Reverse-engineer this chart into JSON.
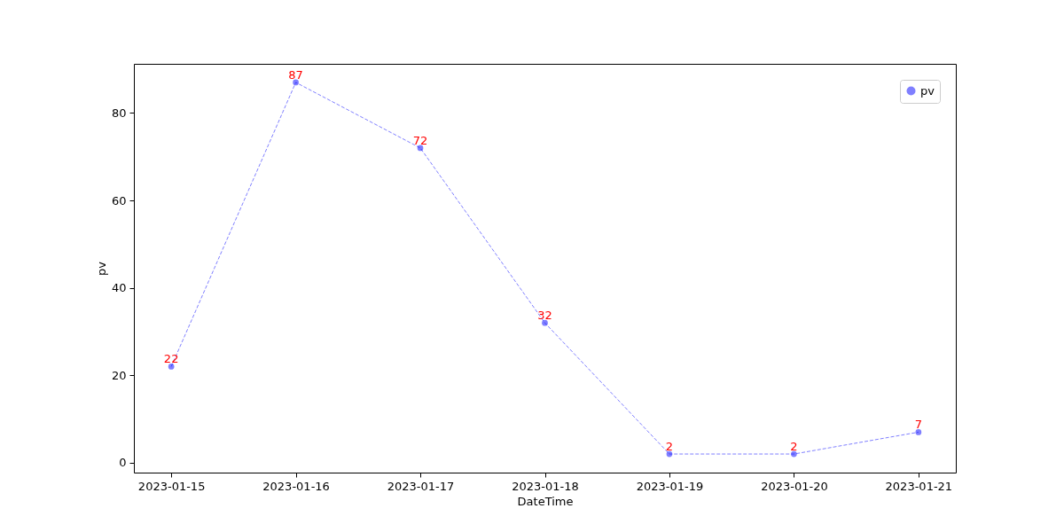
{
  "chart_data": {
    "type": "line",
    "xlabel": "DateTime",
    "ylabel": "pv",
    "x": [
      "2023-01-15",
      "2023-01-16",
      "2023-01-17",
      "2023-01-18",
      "2023-01-19",
      "2023-01-20",
      "2023-01-21"
    ],
    "series": [
      {
        "name": "pv",
        "color": "#0000ff",
        "values": [
          22,
          87,
          72,
          32,
          2,
          2,
          7
        ]
      }
    ],
    "xlim": [
      "2023-01-14T16:48",
      "2023-01-21T07:12"
    ],
    "ylim": [
      -2.25,
      91.25
    ],
    "xticks": [
      "2023-01-15",
      "2023-01-16",
      "2023-01-17",
      "2023-01-18",
      "2023-01-19",
      "2023-01-20",
      "2023-01-21"
    ],
    "yticks": [
      0,
      20,
      40,
      60,
      80
    ],
    "marker": "circle",
    "line_style": "dashed",
    "legend": "top right",
    "data_labels": true
  }
}
